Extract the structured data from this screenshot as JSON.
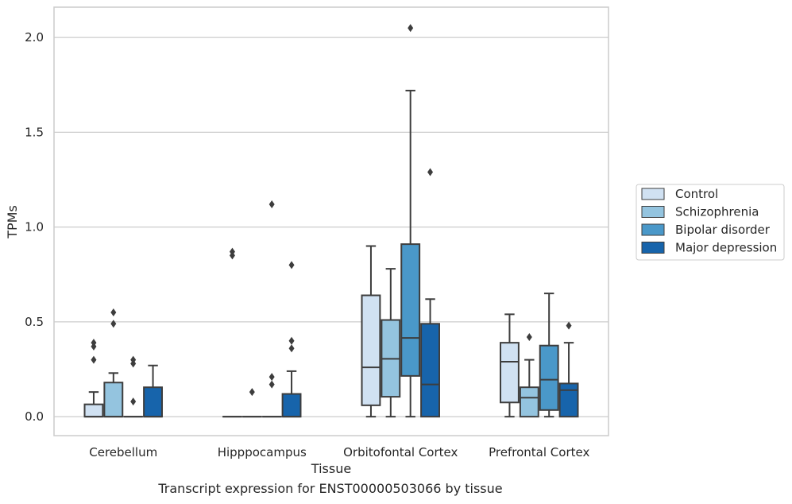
{
  "caption": "Transcript expression for ENST00000503066 by tissue",
  "chart_data": {
    "type": "box",
    "xlabel": "Tissue",
    "ylabel": "TPMs",
    "ylim": [
      -0.1,
      2.16
    ],
    "yticks": [
      0.0,
      0.5,
      1.0,
      1.5,
      2.0
    ],
    "ytick_labels": [
      "0.0",
      "0.5",
      "1.0",
      "1.5",
      "2.0"
    ],
    "grid": "horizontal",
    "legend_position": "right",
    "categories": [
      "Cerebellum",
      "Hipppocampus",
      "Orbitofontal Cortex",
      "Prefrontal Cortex"
    ],
    "series": [
      {
        "name": "Control",
        "color": "#d0e1f2",
        "boxes": [
          {
            "q1": 0.0,
            "median": 0.0,
            "q3": 0.065,
            "whislo": 0.0,
            "whishi": 0.13,
            "fliers": [
              0.3,
              0.37,
              0.39
            ]
          },
          {
            "q1": 0.0,
            "median": 0.0,
            "q3": 0.0,
            "whislo": 0.0,
            "whishi": 0.0,
            "fliers": [
              0.85,
              0.87
            ]
          },
          {
            "q1": 0.06,
            "median": 0.26,
            "q3": 0.64,
            "whislo": 0.0,
            "whishi": 0.9,
            "fliers": []
          },
          {
            "q1": 0.075,
            "median": 0.29,
            "q3": 0.39,
            "whislo": 0.0,
            "whishi": 0.54,
            "fliers": []
          }
        ]
      },
      {
        "name": "Schizophrenia",
        "color": "#94c4df",
        "boxes": [
          {
            "q1": 0.0,
            "median": 0.0,
            "q3": 0.18,
            "whislo": 0.0,
            "whishi": 0.23,
            "fliers": [
              0.49,
              0.55
            ]
          },
          {
            "q1": 0.0,
            "median": 0.0,
            "q3": 0.0,
            "whislo": 0.0,
            "whishi": 0.0,
            "fliers": [
              0.13
            ]
          },
          {
            "q1": 0.105,
            "median": 0.305,
            "q3": 0.51,
            "whislo": 0.0,
            "whishi": 0.78,
            "fliers": []
          },
          {
            "q1": 0.0,
            "median": 0.1,
            "q3": 0.155,
            "whislo": 0.0,
            "whishi": 0.3,
            "fliers": [
              0.42
            ]
          }
        ]
      },
      {
        "name": "Bipolar disorder",
        "color": "#4a98c9",
        "boxes": [
          {
            "q1": 0.0,
            "median": 0.0,
            "q3": 0.0,
            "whislo": 0.0,
            "whishi": 0.0,
            "fliers": [
              0.08,
              0.28,
              0.3
            ]
          },
          {
            "q1": 0.0,
            "median": 0.0,
            "q3": 0.0,
            "whislo": 0.0,
            "whishi": 0.0,
            "fliers": [
              0.17,
              0.21,
              1.12
            ]
          },
          {
            "q1": 0.215,
            "median": 0.415,
            "q3": 0.91,
            "whislo": 0.0,
            "whishi": 1.72,
            "fliers": [
              2.05
            ]
          },
          {
            "q1": 0.035,
            "median": 0.195,
            "q3": 0.375,
            "whislo": 0.0,
            "whishi": 0.65,
            "fliers": []
          }
        ]
      },
      {
        "name": "Major depression",
        "color": "#1764ab",
        "boxes": [
          {
            "q1": 0.0,
            "median": 0.0,
            "q3": 0.155,
            "whislo": 0.0,
            "whishi": 0.27,
            "fliers": []
          },
          {
            "q1": 0.0,
            "median": 0.0,
            "q3": 0.12,
            "whislo": 0.0,
            "whishi": 0.24,
            "fliers": [
              0.36,
              0.4,
              0.8
            ]
          },
          {
            "q1": 0.0,
            "median": 0.17,
            "q3": 0.49,
            "whislo": 0.0,
            "whishi": 0.62,
            "fliers": [
              1.29
            ]
          },
          {
            "q1": 0.0,
            "median": 0.14,
            "q3": 0.175,
            "whislo": 0.0,
            "whishi": 0.39,
            "fliers": [
              0.48
            ]
          }
        ]
      }
    ]
  }
}
